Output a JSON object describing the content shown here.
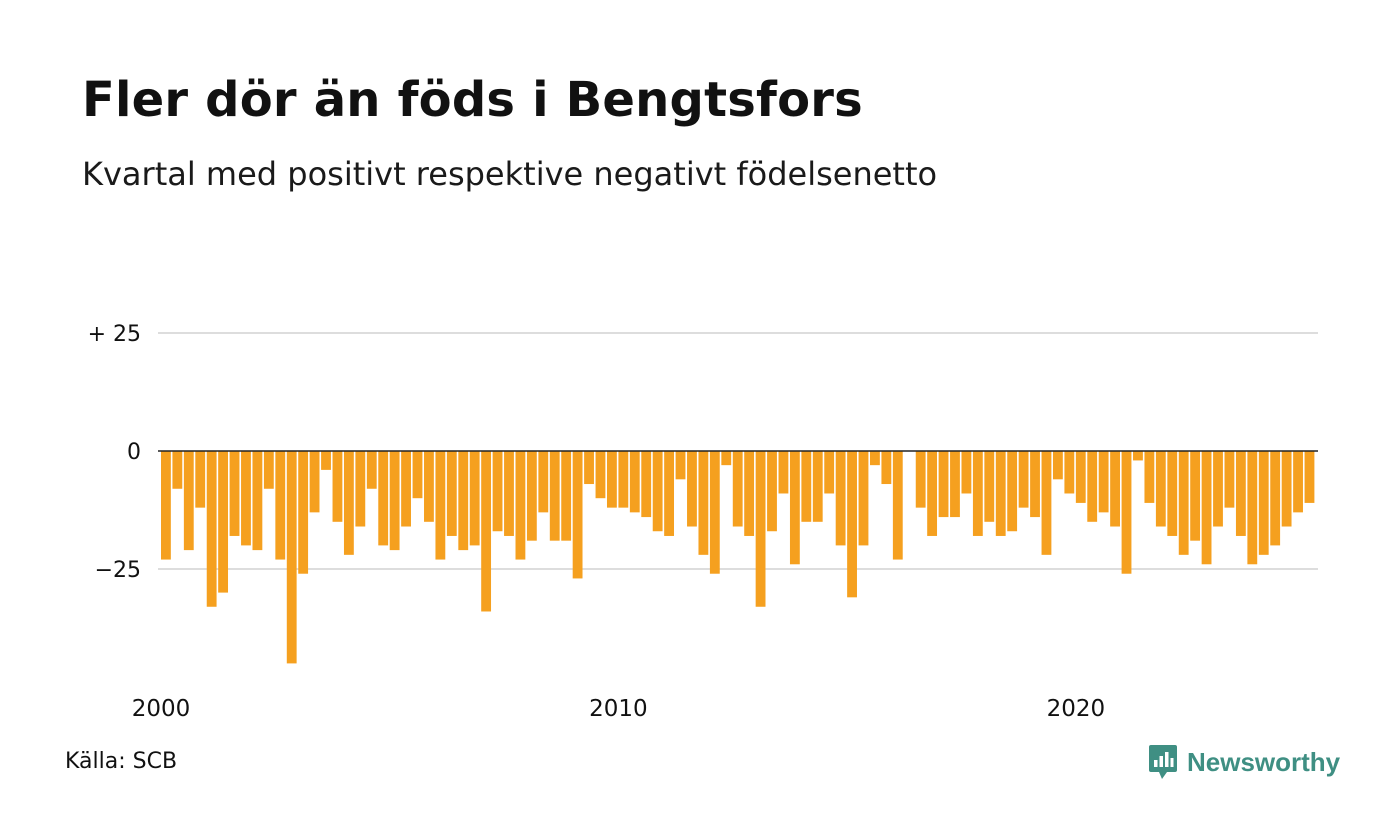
{
  "header": {
    "title": "Fler dör än föds i Bengtsfors",
    "subtitle": "Kvartal med positivt respektive negativt födelsenetto"
  },
  "footer": {
    "source": "Källa: SCB",
    "brand": "Newsworthy",
    "brand_icon": "newsworthy-chart-bubble-icon"
  },
  "colors": {
    "negative_bar": "#f5a01f",
    "gridline": "#dddddd",
    "zero_line": "#222222",
    "brand": "#3f8f83"
  },
  "chart_data": {
    "type": "bar",
    "x_start": "2000 Q1",
    "x_ticks": [
      {
        "label": "2000",
        "index": 0
      },
      {
        "label": "2010",
        "index": 40
      },
      {
        "label": "2020",
        "index": 80
      }
    ],
    "y_ticks": [
      {
        "label": "+ 25",
        "value": 25
      },
      {
        "label": "0",
        "value": 0
      },
      {
        "label": "−25",
        "value": -25
      }
    ],
    "ylim": [
      -45,
      25
    ],
    "grid": true,
    "values": [
      -23,
      -8,
      -21,
      -12,
      -33,
      -30,
      -18,
      -20,
      -21,
      -8,
      -23,
      -45,
      -26,
      -13,
      -4,
      -15,
      -22,
      -16,
      -8,
      -20,
      -21,
      -16,
      -10,
      -15,
      -23,
      -18,
      -21,
      -20,
      -34,
      -17,
      -18,
      -23,
      -19,
      -13,
      -19,
      -19,
      -27,
      -7,
      -10,
      -12,
      -12,
      -13,
      -14,
      -17,
      -18,
      -6,
      -16,
      -22,
      -26,
      -3,
      -16,
      -18,
      -33,
      -17,
      -9,
      -24,
      -15,
      -15,
      -9,
      -20,
      -31,
      -20,
      -3,
      -7,
      -23,
      0,
      -12,
      -18,
      -14,
      -14,
      -9,
      -18,
      -15,
      -18,
      -17,
      -12,
      -14,
      -22,
      -6,
      -9,
      -11,
      -15,
      -13,
      -16,
      -26,
      -2,
      -11,
      -16,
      -18,
      -22,
      -19,
      -24,
      -16,
      -12,
      -18,
      -24,
      -22,
      -20,
      -16,
      -13,
      -11
    ]
  }
}
